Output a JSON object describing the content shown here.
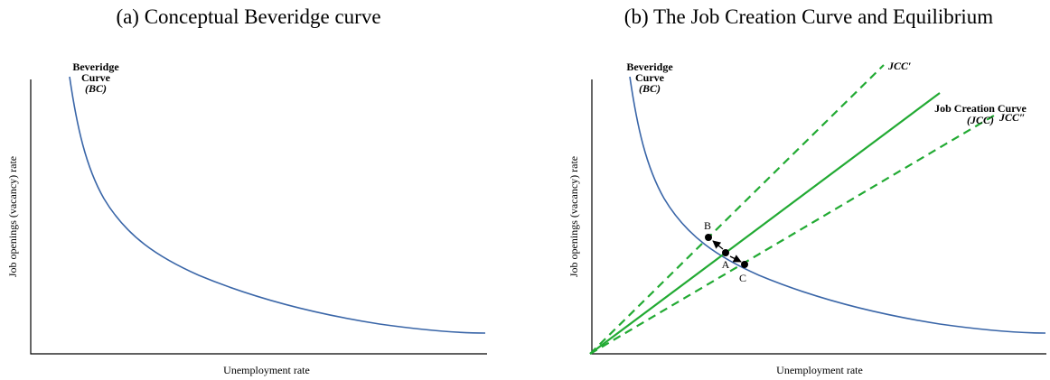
{
  "panel_a": {
    "title": "(a) Conceptual Beveridge curve",
    "curve_label": [
      "Beveridge",
      "Curve",
      "(BC)"
    ],
    "y_axis_label": "Job openings (vacancy) rate",
    "x_axis_label": "Unemployment rate"
  },
  "panel_b": {
    "title": "(b) The Job Creation Curve and Equilibrium",
    "curve_label": [
      "Beveridge",
      "Curve",
      "(BC)"
    ],
    "jcc_label": [
      "Job Creation Curve",
      "(JCC)"
    ],
    "jcc_prime_label": "JCC′",
    "jcc_double_prime_label": "JCC″",
    "points": [
      "A",
      "B",
      "C"
    ],
    "y_axis_label": "Job openings (vacancy) rate",
    "x_axis_label": "Unemployment rate"
  }
}
